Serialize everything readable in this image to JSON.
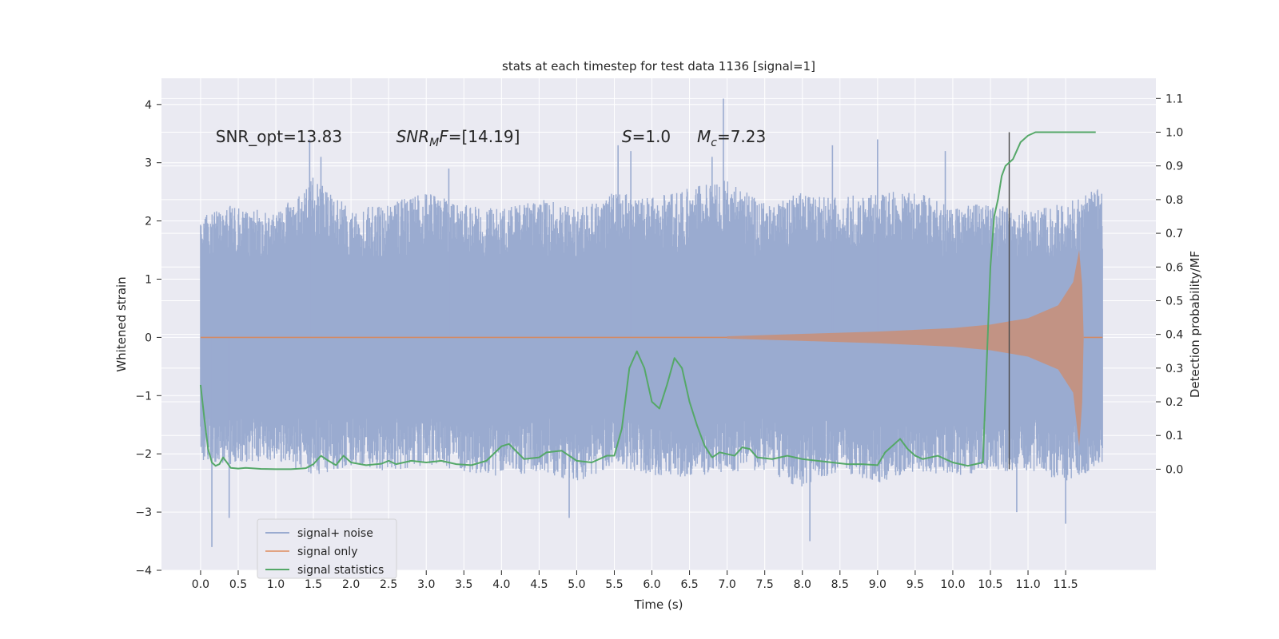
{
  "chart_data": {
    "type": "line",
    "title": "stats at each timestep for test data 1136 [signal=1]",
    "xlabel": "Time (s)",
    "ylabel": "Whitened strain",
    "ylabel_right": "Detection probability/MF",
    "xlim": [
      -0.52,
      12.7
    ],
    "ylim": [
      -4.0,
      4.45
    ],
    "ylim_right": [
      -0.3,
      1.16
    ],
    "xticks": [
      0.0,
      0.5,
      1.0,
      1.5,
      2.0,
      2.5,
      3.0,
      3.5,
      4.0,
      4.5,
      5.0,
      5.5,
      6.0,
      6.5,
      7.0,
      7.5,
      8.0,
      8.5,
      9.0,
      9.5,
      10.0,
      10.5,
      11.0,
      11.5
    ],
    "xtick_labels": [
      "0.0",
      "0.5",
      "1.0",
      "1.5",
      "2.0",
      "2.5",
      "3.0",
      "3.5",
      "4.0",
      "4.5",
      "5.0",
      "5.5",
      "6.0",
      "6.5",
      "7.0",
      "7.5",
      "8.0",
      "8.5",
      "9.0",
      "9.5",
      "10.0",
      "10.5",
      "11.0",
      "11.5"
    ],
    "yticks": [
      -4,
      -3,
      -2,
      -1,
      0,
      1,
      2,
      3,
      4
    ],
    "ytick_labels": [
      "−4",
      "−3",
      "−2",
      "−1",
      "0",
      "1",
      "2",
      "3",
      "4"
    ],
    "yticks_right": [
      0.0,
      0.1,
      0.2,
      0.3,
      0.4,
      0.5,
      0.6,
      0.7,
      0.8,
      0.9,
      1.0,
      1.1
    ],
    "ytick_right_labels": [
      "0.0",
      "0.1",
      "0.2",
      "0.3",
      "0.4",
      "0.5",
      "0.6",
      "0.7",
      "0.8",
      "0.9",
      "1.0",
      "1.1"
    ],
    "grid": true,
    "legend_position": "bottom-left",
    "series": [
      {
        "name": "signal+ noise",
        "axis": "left",
        "color": "#9aabd0",
        "envelope_x": [
          0.0,
          0.5,
          1.0,
          1.5,
          2.0,
          2.5,
          3.0,
          3.5,
          4.0,
          4.5,
          5.0,
          5.5,
          6.0,
          6.5,
          7.0,
          7.5,
          8.0,
          8.5,
          9.0,
          9.5,
          10.0,
          10.5,
          11.0,
          11.5,
          11.99
        ],
        "envelope_upper": [
          2.2,
          2.3,
          2.1,
          2.8,
          2.2,
          2.3,
          2.5,
          2.3,
          2.2,
          2.4,
          2.2,
          2.5,
          2.4,
          2.6,
          2.7,
          2.3,
          2.5,
          2.4,
          2.5,
          2.5,
          2.3,
          2.3,
          2.2,
          2.3,
          2.6
        ],
        "envelope_lower": [
          -2.1,
          -2.2,
          -2.1,
          -2.4,
          -2.2,
          -2.3,
          -2.2,
          -2.3,
          -2.4,
          -2.3,
          -2.5,
          -2.2,
          -2.4,
          -2.4,
          -2.3,
          -2.3,
          -2.6,
          -2.3,
          -2.5,
          -2.3,
          -2.4,
          -2.3,
          -2.3,
          -2.5,
          -2.2
        ],
        "peaks": [
          {
            "x": 0.15,
            "y": -3.6
          },
          {
            "x": 0.38,
            "y": -3.1
          },
          {
            "x": 1.45,
            "y": 3.4
          },
          {
            "x": 1.6,
            "y": 3.1
          },
          {
            "x": 3.3,
            "y": 2.9
          },
          {
            "x": 5.55,
            "y": 3.3
          },
          {
            "x": 5.72,
            "y": 3.2
          },
          {
            "x": 6.95,
            "y": 4.1
          },
          {
            "x": 6.8,
            "y": 3.1
          },
          {
            "x": 8.1,
            "y": -3.5
          },
          {
            "x": 8.4,
            "y": 3.3
          },
          {
            "x": 9.0,
            "y": 3.4
          },
          {
            "x": 9.9,
            "y": 3.2
          },
          {
            "x": 11.5,
            "y": -3.2
          },
          {
            "x": 10.85,
            "y": -3.0
          },
          {
            "x": 4.9,
            "y": -3.1
          }
        ]
      },
      {
        "name": "signal only",
        "axis": "left",
        "color": "#dd8452",
        "chirp_start": 7.0,
        "chirp_end": 11.74,
        "chirp_amplitude": [
          {
            "x": 7.0,
            "y": 0.02
          },
          {
            "x": 8.0,
            "y": 0.06
          },
          {
            "x": 9.0,
            "y": 0.1
          },
          {
            "x": 10.0,
            "y": 0.16
          },
          {
            "x": 10.5,
            "y": 0.22
          },
          {
            "x": 11.0,
            "y": 0.33
          },
          {
            "x": 11.4,
            "y": 0.55
          },
          {
            "x": 11.6,
            "y": 0.95
          },
          {
            "x": 11.68,
            "y": 1.5
          },
          {
            "x": 11.72,
            "y": 0.9
          },
          {
            "x": 11.74,
            "y": 0.0
          }
        ]
      },
      {
        "name": "signal statistics",
        "axis": "right",
        "color": "#55a868",
        "x": [
          0.0,
          0.05,
          0.1,
          0.15,
          0.2,
          0.25,
          0.3,
          0.35,
          0.4,
          0.5,
          0.6,
          0.8,
          1.0,
          1.2,
          1.4,
          1.5,
          1.6,
          1.7,
          1.8,
          1.9,
          2.0,
          2.2,
          2.4,
          2.5,
          2.6,
          2.8,
          3.0,
          3.2,
          3.4,
          3.6,
          3.8,
          4.0,
          4.1,
          4.3,
          4.5,
          4.6,
          4.8,
          5.0,
          5.2,
          5.4,
          5.5,
          5.6,
          5.7,
          5.8,
          5.9,
          6.0,
          6.1,
          6.2,
          6.3,
          6.4,
          6.5,
          6.6,
          6.7,
          6.8,
          6.9,
          7.0,
          7.1,
          7.2,
          7.3,
          7.4,
          7.6,
          7.8,
          8.0,
          8.2,
          8.4,
          8.6,
          8.8,
          9.0,
          9.1,
          9.2,
          9.3,
          9.4,
          9.5,
          9.6,
          9.8,
          10.0,
          10.2,
          10.4,
          10.5,
          10.55,
          10.6,
          10.65,
          10.7,
          10.8,
          10.9,
          11.0,
          11.1,
          11.2,
          11.3,
          11.5,
          11.7,
          11.9
        ],
        "y": [
          0.25,
          0.15,
          0.06,
          0.02,
          0.01,
          0.015,
          0.035,
          0.02,
          0.004,
          0.002,
          0.004,
          0.001,
          0.0,
          0.0,
          0.003,
          0.015,
          0.04,
          0.025,
          0.012,
          0.04,
          0.02,
          0.012,
          0.016,
          0.025,
          0.015,
          0.025,
          0.02,
          0.025,
          0.015,
          0.012,
          0.025,
          0.068,
          0.075,
          0.03,
          0.035,
          0.05,
          0.055,
          0.025,
          0.02,
          0.04,
          0.04,
          0.12,
          0.3,
          0.35,
          0.3,
          0.2,
          0.18,
          0.25,
          0.33,
          0.3,
          0.2,
          0.13,
          0.07,
          0.035,
          0.05,
          0.045,
          0.04,
          0.065,
          0.06,
          0.035,
          0.03,
          0.04,
          0.03,
          0.025,
          0.02,
          0.015,
          0.015,
          0.012,
          0.05,
          0.07,
          0.09,
          0.06,
          0.04,
          0.03,
          0.04,
          0.02,
          0.01,
          0.02,
          0.6,
          0.75,
          0.8,
          0.87,
          0.9,
          0.92,
          0.97,
          0.99,
          1.0,
          1.0,
          1.0,
          1.0,
          1.0,
          1.0
        ]
      }
    ],
    "vertical_marker": {
      "x": 10.75,
      "y_from": -0.0,
      "y_to": 1.0,
      "axis": "right",
      "color": "#4a4a4a"
    },
    "annotations": [
      {
        "text": "SNR_opt=13.83",
        "x": 0.2,
        "y": 3.35
      },
      {
        "text": "SNR",
        "sub": "M",
        "text_after": "F=[14.19]",
        "italic": true,
        "x": 2.6,
        "y": 3.35
      },
      {
        "text": "S",
        "text_after": "=1.0",
        "italic": true,
        "x": 5.6,
        "y": 3.35
      },
      {
        "text": "M",
        "sub": "c",
        "text_after": "=7.23",
        "italic": true,
        "x": 6.6,
        "y": 3.35
      }
    ]
  },
  "colors": {
    "plot_background": "#eaeaf2",
    "grid": "#ffffff",
    "text": "#262626"
  }
}
